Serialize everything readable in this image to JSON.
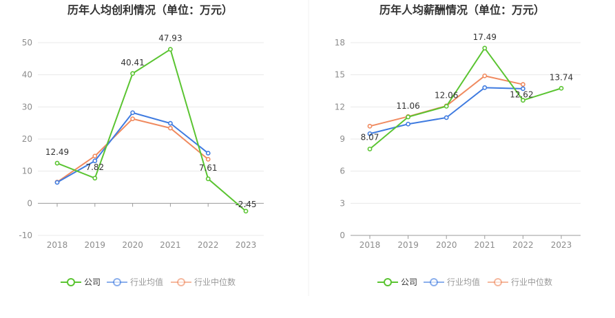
{
  "colors": {
    "company": "#5ac431",
    "industry_avg": "#3f7be0",
    "industry_median": "#f08a5f",
    "axis_text": "#8c8c8c",
    "grid": "#e8e8e8",
    "title": "#333333"
  },
  "legend": {
    "company": "公司",
    "industry_avg": "行业均值",
    "industry_median": "行业中位数"
  },
  "chart_data": [
    {
      "type": "line",
      "title": "历年人均创利情况（单位：万元）",
      "x": [
        "2018",
        "2019",
        "2020",
        "2021",
        "2022",
        "2023"
      ],
      "yticks": [
        "50",
        "40",
        "30",
        "20",
        "10",
        "0",
        "-10"
      ],
      "ylim": [
        -10,
        50
      ],
      "grid": true,
      "legend_position": "bottom",
      "series": [
        {
          "key": "company",
          "name": "公司",
          "values": [
            12.49,
            7.82,
            40.41,
            47.93,
            7.61,
            -2.45
          ],
          "labels": [
            "12.49",
            "7.82",
            "40.41",
            "47.93",
            "7.61",
            "-2.45"
          ]
        },
        {
          "key": "industry_avg",
          "name": "行业均值",
          "values": [
            6.5,
            13.2,
            28.2,
            24.9,
            15.6,
            null
          ]
        },
        {
          "key": "industry_median",
          "name": "行业中位数",
          "values": [
            6.6,
            14.7,
            26.3,
            23.4,
            13.7,
            null
          ]
        }
      ]
    },
    {
      "type": "line",
      "title": "历年人均薪酬情况（单位：万元）",
      "x": [
        "2018",
        "2019",
        "2020",
        "2021",
        "2022",
        "2023"
      ],
      "yticks": [
        "18",
        "15",
        "12",
        "9",
        "6",
        "3",
        "0"
      ],
      "ylim": [
        0,
        18
      ],
      "grid": true,
      "legend_position": "bottom",
      "series": [
        {
          "key": "company",
          "name": "公司",
          "values": [
            8.07,
            11.06,
            12.06,
            17.49,
            12.62,
            13.74
          ],
          "labels": [
            "8.07",
            "11.06",
            "12.06",
            "17.49",
            "12.62",
            "13.74"
          ]
        },
        {
          "key": "industry_avg",
          "name": "行业均值",
          "values": [
            9.5,
            10.4,
            11.0,
            13.8,
            13.7,
            null
          ]
        },
        {
          "key": "industry_median",
          "name": "行业中位数",
          "values": [
            10.2,
            11.1,
            12.1,
            14.9,
            14.1,
            null
          ]
        }
      ]
    }
  ]
}
